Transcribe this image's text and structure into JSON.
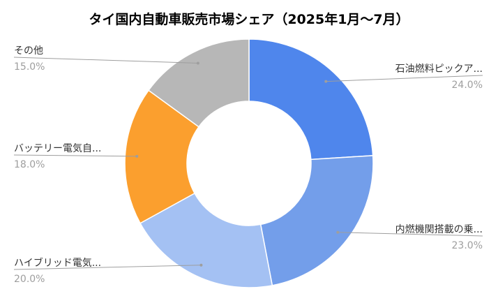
{
  "chart_data": {
    "type": "pie",
    "title": "タイ国内自動車販売市場シェア（2025年1月〜7月）",
    "donut": true,
    "legend": "none",
    "slices": [
      {
        "label": "石油燃料ピックア...",
        "value": 24.0,
        "value_text": "24.0%",
        "color": "#4f86ec"
      },
      {
        "label": "内燃機関搭載の乗...",
        "value": 23.0,
        "value_text": "23.0%",
        "color": "#739eea"
      },
      {
        "label": "ハイブリッド電気...",
        "value": 20.0,
        "value_text": "20.0%",
        "color": "#a4c1f3"
      },
      {
        "label": "バッテリー電気自...",
        "value": 18.0,
        "value_text": "18.0%",
        "color": "#fb9f2e"
      },
      {
        "label": "その他",
        "value": 15.0,
        "value_text": "15.0%",
        "color": "#b7b7b7"
      }
    ]
  }
}
